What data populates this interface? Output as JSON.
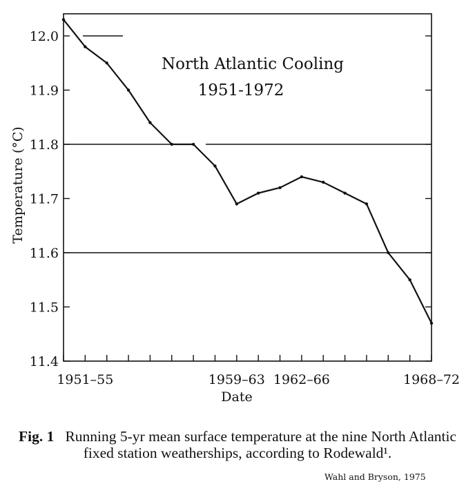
{
  "chart_data": {
    "type": "line",
    "title": "North Atlantic Cooling",
    "subtitle": "1951-1972",
    "xlabel": "Date",
    "ylabel": "Temperature (°C)",
    "xlim": [
      0,
      17
    ],
    "ylim": [
      11.4,
      12.05
    ],
    "yticks": [
      11.4,
      11.5,
      11.6,
      11.7,
      11.8,
      11.9,
      12.0
    ],
    "ytick_labels": [
      "11.4",
      "11.5",
      "11.6",
      "11.7",
      "11.8",
      "11.9",
      "12.0"
    ],
    "xticks": [
      0,
      1,
      2,
      3,
      4,
      5,
      6,
      7,
      8,
      9,
      10,
      11,
      12,
      13,
      14,
      15,
      16,
      17
    ],
    "xtick_labels": [
      {
        "pos": 1,
        "text": "1951–55"
      },
      {
        "pos": 8,
        "text": "1959–63"
      },
      {
        "pos": 11,
        "text": "1962–66"
      },
      {
        "pos": 17,
        "text": "1968–72"
      }
    ],
    "reference_lines_y": [
      11.6,
      11.8
    ],
    "grid": false,
    "series": [
      {
        "x": [
          0,
          1,
          2,
          3,
          4,
          5,
          6,
          7,
          8,
          9,
          10,
          11,
          12,
          13,
          14,
          15,
          16,
          17
        ],
        "values": [
          12.03,
          11.98,
          11.95,
          11.9,
          11.84,
          11.8,
          11.8,
          11.76,
          11.69,
          11.71,
          11.72,
          11.74,
          11.73,
          11.71,
          11.69,
          11.6,
          11.55,
          11.47
        ]
      }
    ]
  },
  "caption": {
    "fig_label": "Fig. 1",
    "text": "Running 5-yr mean surface temperature at the nine North Atlantic fixed station weatherships, according to Rodewald¹."
  },
  "source": "Wahl and Bryson, 1975"
}
